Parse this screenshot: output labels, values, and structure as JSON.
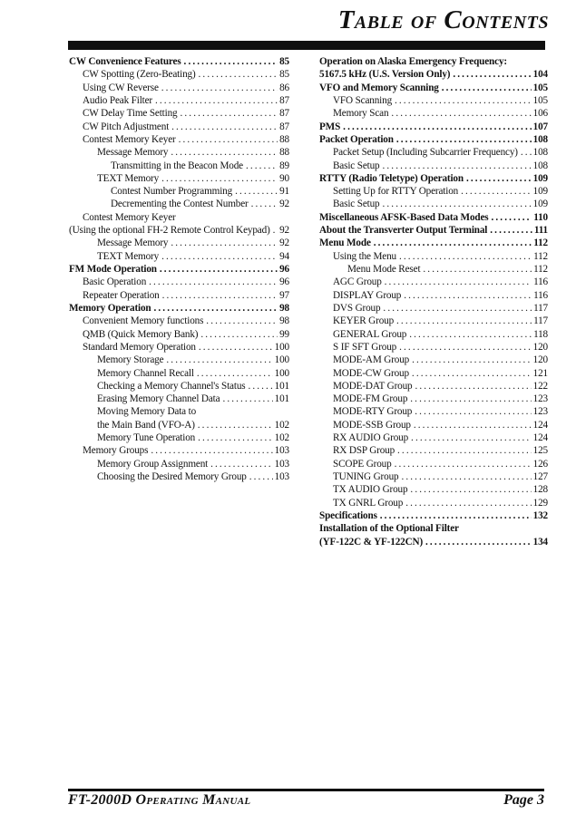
{
  "header": {
    "title": "Table of Contents"
  },
  "footer": {
    "left": "FT-2000D Operating Manual",
    "right": "Page 3"
  },
  "toc": {
    "left_column": [
      {
        "label": "CW Convenience Features",
        "page": "85",
        "level": 0,
        "bold": true
      },
      {
        "label": "CW Spotting (Zero-Beating)",
        "page": "85",
        "level": 1,
        "bold": false
      },
      {
        "label": "Using CW Reverse",
        "page": "86",
        "level": 1,
        "bold": false
      },
      {
        "label": "Audio Peak Filter",
        "page": "87",
        "level": 1,
        "bold": false
      },
      {
        "label": "CW Delay Time Setting",
        "page": "87",
        "level": 1,
        "bold": false
      },
      {
        "label": "CW Pitch Adjustment",
        "page": "87",
        "level": 1,
        "bold": false
      },
      {
        "label": "Contest Memory Keyer",
        "page": "88",
        "level": 1,
        "bold": false
      },
      {
        "label": "Message Memory",
        "page": "88",
        "level": 2,
        "bold": false
      },
      {
        "label": "Transmitting in the Beacon Mode",
        "page": "89",
        "level": 3,
        "bold": false
      },
      {
        "label": "TEXT Memory",
        "page": "90",
        "level": 2,
        "bold": false
      },
      {
        "label": "Contest Number Programming",
        "page": "91",
        "level": 3,
        "bold": false
      },
      {
        "label": "Decrementing the Contest Number",
        "page": "92",
        "level": 3,
        "bold": false
      },
      {
        "label": "Contest Memory Keyer",
        "page": null,
        "level": 1,
        "bold": false
      },
      {
        "label": "(Using the optional FH-2 Remote Control Keypad)",
        "page": "92",
        "level": 0,
        "bold": false
      },
      {
        "label": "Message Memory",
        "page": "92",
        "level": 2,
        "bold": false
      },
      {
        "label": "TEXT Memory",
        "page": "94",
        "level": 2,
        "bold": false
      },
      {
        "label": "FM Mode Operation",
        "page": "96",
        "level": 0,
        "bold": true
      },
      {
        "label": "Basic Operation",
        "page": "96",
        "level": 1,
        "bold": false
      },
      {
        "label": "Repeater Operation",
        "page": "97",
        "level": 1,
        "bold": false
      },
      {
        "label": "Memory Operation",
        "page": "98",
        "level": 0,
        "bold": true
      },
      {
        "label": "Convenient Memory functions",
        "page": "98",
        "level": 1,
        "bold": false
      },
      {
        "label": "QMB (Quick Memory Bank)",
        "page": "99",
        "level": 1,
        "bold": false
      },
      {
        "label": "Standard Memory Operation",
        "page": "100",
        "level": 1,
        "bold": false
      },
      {
        "label": "Memory Storage",
        "page": "100",
        "level": 2,
        "bold": false
      },
      {
        "label": "Memory Channel Recall",
        "page": "100",
        "level": 2,
        "bold": false
      },
      {
        "label": "Checking a Memory Channel's Status",
        "page": "101",
        "level": 2,
        "bold": false
      },
      {
        "label": "Erasing Memory Channel Data",
        "page": "101",
        "level": 2,
        "bold": false
      },
      {
        "label": "Moving Memory Data to",
        "page": null,
        "level": 2,
        "bold": false
      },
      {
        "label": "the Main Band (VFO-A)",
        "page": "102",
        "level": 2,
        "bold": false
      },
      {
        "label": "Memory Tune Operation",
        "page": "102",
        "level": 2,
        "bold": false
      },
      {
        "label": "Memory Groups",
        "page": "103",
        "level": 1,
        "bold": false
      },
      {
        "label": "Memory Group Assignment",
        "page": "103",
        "level": 2,
        "bold": false
      },
      {
        "label": "Choosing the Desired Memory Group",
        "page": "103",
        "level": 2,
        "bold": false
      }
    ],
    "right_column": [
      {
        "label": "Operation on Alaska Emergency Frequency:",
        "page": null,
        "level": 0,
        "bold": true
      },
      {
        "label": "5167.5 kHz (U.S. Version Only)",
        "page": "104",
        "level": 0,
        "bold": true
      },
      {
        "label": "VFO and Memory Scanning",
        "page": "105",
        "level": 0,
        "bold": true
      },
      {
        "label": "VFO Scanning",
        "page": "105",
        "level": 1,
        "bold": false
      },
      {
        "label": "Memory Scan",
        "page": "106",
        "level": 1,
        "bold": false
      },
      {
        "label": "PMS",
        "page": "107",
        "level": 0,
        "bold": true
      },
      {
        "label": "Packet Operation",
        "page": "108",
        "level": 0,
        "bold": true
      },
      {
        "label": "Packet Setup (Including Subcarrier Frequency)",
        "page": "108",
        "level": 1,
        "bold": false
      },
      {
        "label": "Basic Setup",
        "page": "108",
        "level": 1,
        "bold": false
      },
      {
        "label": "RTTY (Radio Teletype) Operation",
        "page": "109",
        "level": 0,
        "bold": true
      },
      {
        "label": "Setting Up for RTTY Operation",
        "page": "109",
        "level": 1,
        "bold": false
      },
      {
        "label": "Basic Setup",
        "page": "109",
        "level": 1,
        "bold": false
      },
      {
        "label": "Miscellaneous AFSK-Based Data Modes",
        "page": "110",
        "level": 0,
        "bold": true
      },
      {
        "label": "About the Transverter Output Terminal",
        "page": "111",
        "level": 0,
        "bold": true
      },
      {
        "label": "Menu Mode",
        "page": "112",
        "level": 0,
        "bold": true
      },
      {
        "label": "Using the Menu",
        "page": "112",
        "level": 1,
        "bold": false
      },
      {
        "label": "Menu Mode Reset",
        "page": "112",
        "level": 2,
        "bold": false
      },
      {
        "label": "AGC Group",
        "page": "116",
        "level": 1,
        "bold": false
      },
      {
        "label": "DISPLAY Group",
        "page": "116",
        "level": 1,
        "bold": false
      },
      {
        "label": "DVS Group",
        "page": "117",
        "level": 1,
        "bold": false
      },
      {
        "label": "KEYER Group",
        "page": "117",
        "level": 1,
        "bold": false
      },
      {
        "label": "GENERAL Group",
        "page": "118",
        "level": 1,
        "bold": false
      },
      {
        "label": "S IF SFT Group",
        "page": "120",
        "level": 1,
        "bold": false
      },
      {
        "label": "MODE-AM Group",
        "page": "120",
        "level": 1,
        "bold": false
      },
      {
        "label": "MODE-CW Group",
        "page": "121",
        "level": 1,
        "bold": false
      },
      {
        "label": "MODE-DAT Group",
        "page": "122",
        "level": 1,
        "bold": false
      },
      {
        "label": "MODE-FM Group",
        "page": "123",
        "level": 1,
        "bold": false
      },
      {
        "label": "MODE-RTY Group",
        "page": "123",
        "level": 1,
        "bold": false
      },
      {
        "label": "MODE-SSB Group",
        "page": "124",
        "level": 1,
        "bold": false
      },
      {
        "label": "RX AUDIO Group",
        "page": "124",
        "level": 1,
        "bold": false
      },
      {
        "label": "RX DSP Group",
        "page": "125",
        "level": 1,
        "bold": false
      },
      {
        "label": "SCOPE Group",
        "page": "126",
        "level": 1,
        "bold": false
      },
      {
        "label": "TUNING Group",
        "page": "127",
        "level": 1,
        "bold": false
      },
      {
        "label": "TX AUDIO Group",
        "page": "128",
        "level": 1,
        "bold": false
      },
      {
        "label": "TX GNRL Group",
        "page": "129",
        "level": 1,
        "bold": false
      },
      {
        "label": "Specifications",
        "page": "132",
        "level": 0,
        "bold": true
      },
      {
        "label": "Installation of the Optional Filter",
        "page": null,
        "level": 0,
        "bold": true
      },
      {
        "label": "(YF-122C & YF-122CN)",
        "page": "134",
        "level": 0,
        "bold": true
      }
    ]
  }
}
